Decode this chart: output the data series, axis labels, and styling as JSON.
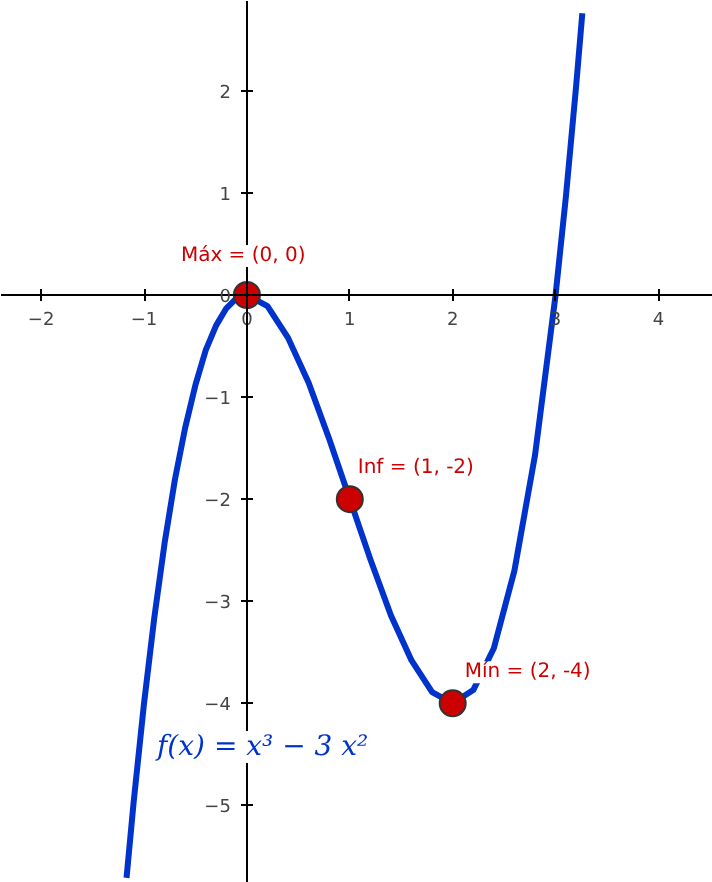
{
  "chart_data": {
    "type": "line",
    "xlim": [
      -2.39,
      4.53
    ],
    "ylim": [
      -5.76,
      2.88
    ],
    "xticks": [
      -2,
      -1,
      0,
      1,
      2,
      3,
      4
    ],
    "yticks": [
      -5,
      -4,
      -3,
      -2,
      -1,
      0,
      1,
      2
    ],
    "grid": false,
    "series": [
      {
        "name": "f(x) = x³ − 3 x²",
        "color": "#0033cc",
        "marker": "none",
        "x": [
          -1.17,
          -1.1,
          -1.0,
          -0.9,
          -0.8,
          -0.7,
          -0.6,
          -0.5,
          -0.4,
          -0.3,
          -0.2,
          -0.1,
          0,
          0.2,
          0.4,
          0.6,
          0.8,
          1.0,
          1.2,
          1.4,
          1.6,
          1.8,
          2.0,
          2.2,
          2.4,
          2.6,
          2.8,
          3.0,
          3.1,
          3.2,
          3.26
        ],
        "values": [
          -5.71,
          -4.96,
          -4,
          -3.16,
          -2.43,
          -1.81,
          -1.3,
          -0.88,
          -0.54,
          -0.3,
          -0.13,
          -0.03,
          0,
          -0.11,
          -0.42,
          -0.86,
          -1.41,
          -2,
          -2.59,
          -3.14,
          -3.58,
          -3.89,
          -4,
          -3.87,
          -3.46,
          -2.7,
          -1.57,
          0,
          0.96,
          2.05,
          2.76
        ]
      },
      {
        "color": "#cc0000",
        "type": "scatter",
        "marker": "circle",
        "x": [
          0,
          1,
          2
        ],
        "values": [
          0,
          -2,
          -4
        ]
      }
    ],
    "annotations": [
      {
        "text": "Máx = (0, 0)",
        "x": 0,
        "y": 0
      },
      {
        "text": "Inf = (1, -2)",
        "x": 1,
        "y": -2
      },
      {
        "text": "Mín = (2, -4)",
        "x": 2,
        "y": -4
      }
    ]
  }
}
